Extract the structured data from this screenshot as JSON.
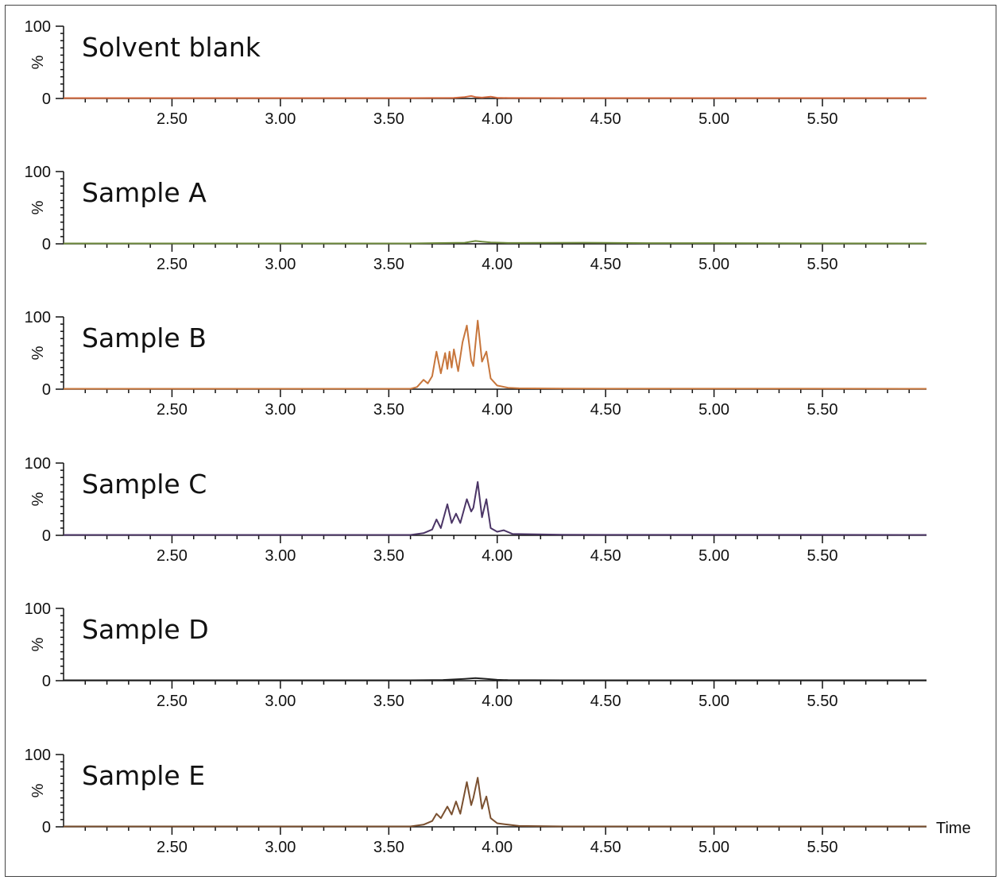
{
  "chart_data": {
    "type": "line",
    "x_axis_label": "Time",
    "y_axis_label": "%",
    "xlim": [
      2.0,
      5.98
    ],
    "ylim": [
      0,
      100
    ],
    "x_ticks": [
      2.5,
      3.0,
      3.5,
      4.0,
      4.5,
      5.0,
      5.5
    ],
    "x_tick_labels": [
      "2.50",
      "3.00",
      "3.50",
      "4.00",
      "4.50",
      "5.00",
      "5.50"
    ],
    "y_ticks": [
      0,
      100
    ],
    "y_tick_labels": [
      "0",
      "100"
    ],
    "grid": false,
    "panels": [
      {
        "name": "Solvent blank",
        "color": "#d0663a",
        "series": {
          "x": [
            2.0,
            3.6,
            3.8,
            3.85,
            3.88,
            3.9,
            3.93,
            3.97,
            4.0,
            4.05,
            4.3,
            5.98
          ],
          "y": [
            0.5,
            0.5,
            0.8,
            2.0,
            3.5,
            2.0,
            1.2,
            2.5,
            1.0,
            0.7,
            0.5,
            0.5
          ]
        }
      },
      {
        "name": "Sample A",
        "color": "#6e8a3c",
        "series": {
          "x": [
            2.0,
            3.6,
            3.7,
            3.85,
            3.9,
            3.93,
            3.97,
            4.05,
            4.4,
            4.7,
            5.98
          ],
          "y": [
            0.5,
            0.5,
            1.0,
            1.5,
            4.0,
            3.0,
            2.0,
            1.2,
            1.5,
            1.0,
            0.5
          ]
        }
      },
      {
        "name": "Sample B",
        "color": "#c7763c",
        "series": {
          "x": [
            2.0,
            3.6,
            3.63,
            3.66,
            3.68,
            3.7,
            3.72,
            3.74,
            3.76,
            3.77,
            3.78,
            3.79,
            3.8,
            3.82,
            3.84,
            3.86,
            3.88,
            3.89,
            3.91,
            3.93,
            3.95,
            3.97,
            4.0,
            4.05,
            4.1,
            4.3,
            5.98
          ],
          "y": [
            0.5,
            0.5,
            3,
            13,
            8,
            18,
            52,
            22,
            50,
            28,
            52,
            30,
            55,
            25,
            65,
            88,
            40,
            32,
            95,
            38,
            52,
            15,
            5,
            2,
            1.2,
            0.8,
            0.5
          ]
        }
      },
      {
        "name": "Sample C",
        "color": "#4b3566",
        "series": {
          "x": [
            2.0,
            3.6,
            3.66,
            3.7,
            3.72,
            3.74,
            3.77,
            3.79,
            3.81,
            3.83,
            3.86,
            3.88,
            3.89,
            3.91,
            3.93,
            3.95,
            3.97,
            4.0,
            4.03,
            4.07,
            4.3,
            5.98
          ],
          "y": [
            0.5,
            0.5,
            3,
            8,
            22,
            10,
            43,
            17,
            30,
            17,
            50,
            33,
            38,
            74,
            25,
            50,
            10,
            5,
            7,
            2,
            0.8,
            0.5
          ]
        }
      },
      {
        "name": "Sample D",
        "color": "#222222",
        "series": {
          "x": [
            2.0,
            3.6,
            3.75,
            3.85,
            3.9,
            3.95,
            4.0,
            4.05,
            4.3,
            5.98
          ],
          "y": [
            0.5,
            0.5,
            1.0,
            2.5,
            3.5,
            2.5,
            1.2,
            0.8,
            0.6,
            0.5
          ]
        }
      },
      {
        "name": "Sample E",
        "color": "#7a5030",
        "series": {
          "x": [
            2.0,
            3.6,
            3.66,
            3.7,
            3.72,
            3.74,
            3.77,
            3.79,
            3.81,
            3.83,
            3.86,
            3.88,
            3.89,
            3.91,
            3.93,
            3.95,
            3.97,
            4.0,
            4.05,
            4.1,
            4.3,
            5.98
          ],
          "y": [
            0.5,
            0.5,
            3,
            8,
            18,
            12,
            28,
            17,
            35,
            18,
            62,
            30,
            40,
            68,
            25,
            42,
            12,
            5,
            3,
            1.2,
            0.6,
            0.5
          ]
        }
      }
    ]
  }
}
